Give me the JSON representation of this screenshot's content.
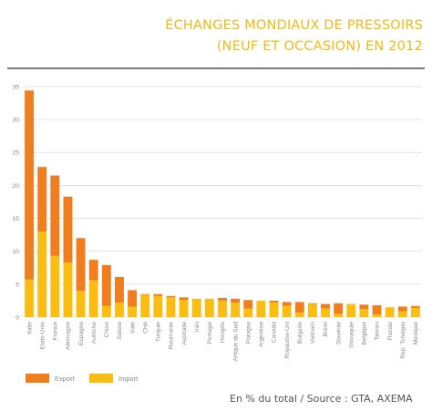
{
  "title_lines": [
    "ÉCHANGES MONDIAUX DE PRESSOIRS",
    "(NEUF ET OCCASION) EN 2012"
  ],
  "source": "En % du total / Source : GTA, AXEMA",
  "colors": {
    "export": "#f07d1e",
    "import": "#fcbd12",
    "title": "#f5b915",
    "grid": "#dcdcdc"
  },
  "chart_data": {
    "type": "bar",
    "stacked": true,
    "ylim": [
      0,
      35
    ],
    "yticks": [
      0,
      5,
      10,
      15,
      20,
      25,
      30,
      35
    ],
    "grid": true,
    "legend_position": "bottom-left",
    "categories": [
      "Italie",
      "Etats-Unis",
      "France",
      "Allemagne",
      "Espagne",
      "Autriche",
      "Chine",
      "Suisse",
      "Inde",
      "Chili",
      "Turquie",
      "Roumanie",
      "Australie",
      "Iran",
      "Portugal",
      "Hongrie",
      "Afrique du Sud",
      "Pologne",
      "Argentine",
      "Canada",
      "Royaume-Uni",
      "Bulgarie",
      "Vietnam",
      "Brésil",
      "Slovénie",
      "Slovaquie",
      "Belgique",
      "Taiwan",
      "Russie",
      "Rep. Tchèque",
      "Mexique"
    ],
    "series": [
      {
        "name": "Import",
        "values": [
          5.7,
          13.0,
          9.3,
          8.3,
          4.0,
          5.6,
          1.7,
          2.2,
          1.6,
          3.4,
          3.2,
          3.0,
          2.6,
          2.8,
          2.8,
          2.5,
          2.2,
          1.3,
          2.5,
          2.2,
          1.7,
          0.7,
          2.0,
          1.3,
          0.5,
          2.0,
          1.2,
          0.4,
          1.5,
          0.9,
          1.4
        ]
      },
      {
        "name": "Export",
        "values": [
          28.7,
          9.8,
          12.2,
          10.0,
          8.0,
          3.1,
          6.2,
          3.9,
          2.5,
          0.1,
          0.3,
          0.2,
          0.4,
          0.0,
          0.0,
          0.4,
          0.6,
          1.3,
          0.0,
          0.3,
          0.6,
          1.6,
          0.1,
          0.7,
          1.6,
          0.0,
          0.7,
          1.4,
          0.0,
          0.7,
          0.3
        ]
      }
    ]
  }
}
